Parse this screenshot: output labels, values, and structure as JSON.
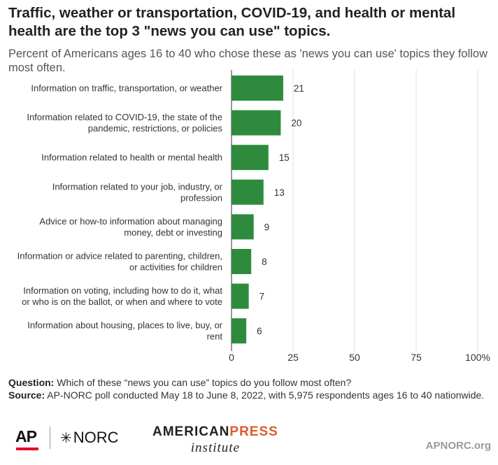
{
  "title": "Traffic, weather or transportation, COVID-19, and health or mental health are the top 3 \"news you can use\" topics.",
  "subtitle": "Percent of Americans ages 16 to 40 who chose these as 'news you can use' topics they follow most often.",
  "colors": {
    "bar": "#2e8b3e",
    "grid": "#dddddd",
    "axis": "#333333"
  },
  "chart_data": {
    "type": "bar",
    "orientation": "horizontal",
    "categories": [
      [
        "Information on traffic, transportation, or weather"
      ],
      [
        "Information related to COVID-19, the state of the",
        "pandemic, restrictions, or policies"
      ],
      [
        "Information related to health or mental health"
      ],
      [
        "Information related to your job, industry, or",
        "profession"
      ],
      [
        "Advice or how-to information about managing",
        "money, debt or investing"
      ],
      [
        "Information or advice related to parenting, children,",
        "or activities for children"
      ],
      [
        "Information on voting, including how to do it, what",
        "or who is on the ballot, or when and where to vote"
      ],
      [
        "Information about housing, places to live, buy, or",
        "rent"
      ]
    ],
    "values": [
      21,
      20,
      15,
      13,
      9,
      8,
      7,
      6
    ],
    "xlim": [
      0,
      100
    ],
    "xticks": [
      0,
      25,
      50,
      75,
      100
    ],
    "xtick_labels": [
      "0",
      "25",
      "50",
      "75",
      "100%"
    ],
    "grid": true
  },
  "notes": {
    "question_label": "Question:",
    "question_text": "Which of these “news you can use” topics do you follow most often?",
    "source_label": "Source:",
    "source_text": "AP-NORC poll conducted May 18 to June 8, 2022, with 5,975 respondents ages 16 to 40 nationwide."
  },
  "logos": {
    "ap": "AP",
    "norc": "NORC",
    "api_part1": "AMERICAN",
    "api_part2": "PRESS",
    "api_sub": "institute",
    "site": "APNORC.org"
  }
}
